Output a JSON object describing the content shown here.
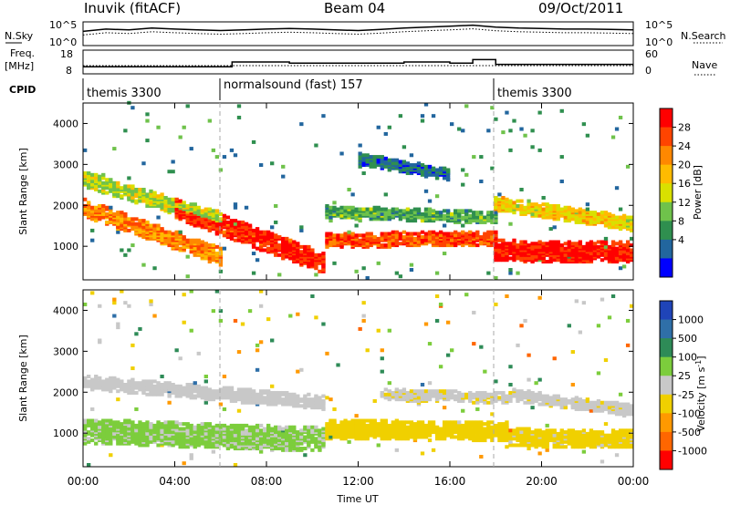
{
  "header": {
    "station": "Inuvik (fitACF)",
    "beam": "Beam 04",
    "date": "09/Oct/2011"
  },
  "top_panel": {
    "left_label": "N.Sky",
    "right_label": "N.Search",
    "left_ticks": [
      "10^5",
      "10^0"
    ],
    "right_ticks": [
      "10^5",
      "10^0"
    ]
  },
  "freq_panel": {
    "left_label_1": "Freq.",
    "left_label_2": "[MHz]",
    "right_label": "Nave",
    "left_ticks": [
      "18",
      "8"
    ],
    "right_ticks": [
      "60",
      "0"
    ]
  },
  "cpid": {
    "label": "CPID",
    "segments": [
      {
        "name": "themis 3300",
        "start_h": 0
      },
      {
        "name": "normalsound (fast) 157",
        "start_h": 6
      },
      {
        "name": "themis 3300",
        "start_h": 18
      }
    ]
  },
  "power_panel": {
    "ylabel": "Slant Range [km]",
    "colorbar_label": "Power [dB]",
    "colorbar_ticks": [
      "28",
      "24",
      "20",
      "16",
      "12",
      "8",
      "4"
    ],
    "colors": [
      "#ff0000",
      "#ff4400",
      "#ff8800",
      "#ffbb00",
      "#d9e000",
      "#6fc24b",
      "#2f8f4f",
      "#22669e",
      "#0000ff"
    ]
  },
  "velocity_panel": {
    "ylabel": "Slant Range [km]",
    "colorbar_label": "Velocity [m s",
    "colorbar_label_sup": "-1",
    "colorbar_label_end": "]",
    "colorbar_ticks": [
      "1000",
      "500",
      "100",
      "25",
      "-25",
      "-100",
      "-500",
      "-1000"
    ],
    "colors": [
      "#1f44b8",
      "#2f6fa8",
      "#2e8b57",
      "#7ccd3c",
      "#c8c8c8",
      "#f0d000",
      "#ff9900",
      "#ff6600",
      "#ff0000"
    ]
  },
  "x_axis": {
    "label": "Time UT",
    "ticks": [
      "00:00",
      "04:00",
      "08:00",
      "12:00",
      "16:00",
      "20:00",
      "00:00"
    ]
  },
  "y_axis": {
    "ticks": [
      "1000",
      "2000",
      "3000",
      "4000"
    ]
  },
  "chart_data": [
    {
      "type": "line",
      "name": "N.Sky",
      "x_unit": "hours UT",
      "x": [
        0,
        1,
        2,
        3,
        4,
        5,
        6,
        7,
        8,
        9,
        10,
        11,
        12,
        13,
        14,
        15,
        16,
        17,
        18,
        19,
        20,
        21,
        22,
        23,
        24
      ],
      "y": [
        1000,
        3000,
        2000,
        5000,
        3000,
        2000,
        1500,
        2000,
        3000,
        4000,
        3000,
        2000,
        1500,
        2500,
        5000,
        8000,
        12000,
        20000,
        8000,
        5000,
        4000,
        3000,
        3000,
        2500,
        2000
      ],
      "ylim": [
        1,
        100000
      ],
      "yscale": "log"
    },
    {
      "type": "line",
      "name": "Freq.",
      "x_unit": "hours UT",
      "x": [
        0,
        6,
        6.5,
        9,
        12,
        14,
        16,
        17,
        18,
        20,
        24
      ],
      "y": [
        11,
        11,
        13,
        12.5,
        12.5,
        13,
        12.5,
        14,
        12,
        12,
        12
      ],
      "ylim": [
        8,
        18
      ]
    },
    {
      "type": "heatmap",
      "name": "Power",
      "x_unit": "hours UT",
      "xlim": [
        0,
        24
      ],
      "ylim": [
        180,
        4500
      ],
      "value_unit": "dB",
      "value_range": [
        0,
        30
      ],
      "bands": [
        {
          "t0": 0,
          "t1": 6,
          "r0": 1900,
          "r1": 700,
          "v": 22,
          "w": 220
        },
        {
          "t0": 0,
          "t1": 6,
          "r0": 2600,
          "r1": 1600,
          "v": 14,
          "w": 200
        },
        {
          "t0": 4,
          "t1": 10.5,
          "r0": 1900,
          "r1": 550,
          "v": 27,
          "w": 260
        },
        {
          "t0": 10.5,
          "t1": 18,
          "r0": 1100,
          "r1": 1150,
          "v": 25,
          "w": 180
        },
        {
          "t0": 10.5,
          "t1": 18,
          "r0": 1800,
          "r1": 1650,
          "v": 10,
          "w": 150
        },
        {
          "t0": 18,
          "t1": 24,
          "r0": 850,
          "r1": 800,
          "v": 28,
          "w": 260
        },
        {
          "t0": 18,
          "t1": 24,
          "r0": 2000,
          "r1": 1500,
          "v": 17,
          "w": 180
        },
        {
          "t0": 12,
          "t1": 16,
          "r0": 3100,
          "r1": 2700,
          "v": 6,
          "w": 150
        }
      ]
    },
    {
      "type": "heatmap",
      "name": "Velocity",
      "x_unit": "hours UT",
      "xlim": [
        0,
        24
      ],
      "ylim": [
        180,
        4500
      ],
      "value_unit": "m s-1",
      "value_range": [
        -1000,
        1000
      ],
      "bands": [
        {
          "t0": 0,
          "t1": 10.5,
          "r0": 1000,
          "r1": 800,
          "v": 150,
          "w": 300
        },
        {
          "t0": 0,
          "t1": 10.5,
          "r0": 2200,
          "r1": 1700,
          "v": 0,
          "w": 170
        },
        {
          "t0": 10.5,
          "t1": 18.5,
          "r0": 1050,
          "r1": 1000,
          "v": -200,
          "w": 230
        },
        {
          "t0": 13,
          "t1": 18.5,
          "r0": 1900,
          "r1": 1800,
          "v": -60,
          "w": 140
        },
        {
          "t0": 18.5,
          "t1": 24,
          "r0": 850,
          "r1": 800,
          "v": -180,
          "w": 220
        },
        {
          "t0": 18.5,
          "t1": 24,
          "r0": 1900,
          "r1": 1500,
          "v": -50,
          "w": 150
        }
      ]
    }
  ]
}
